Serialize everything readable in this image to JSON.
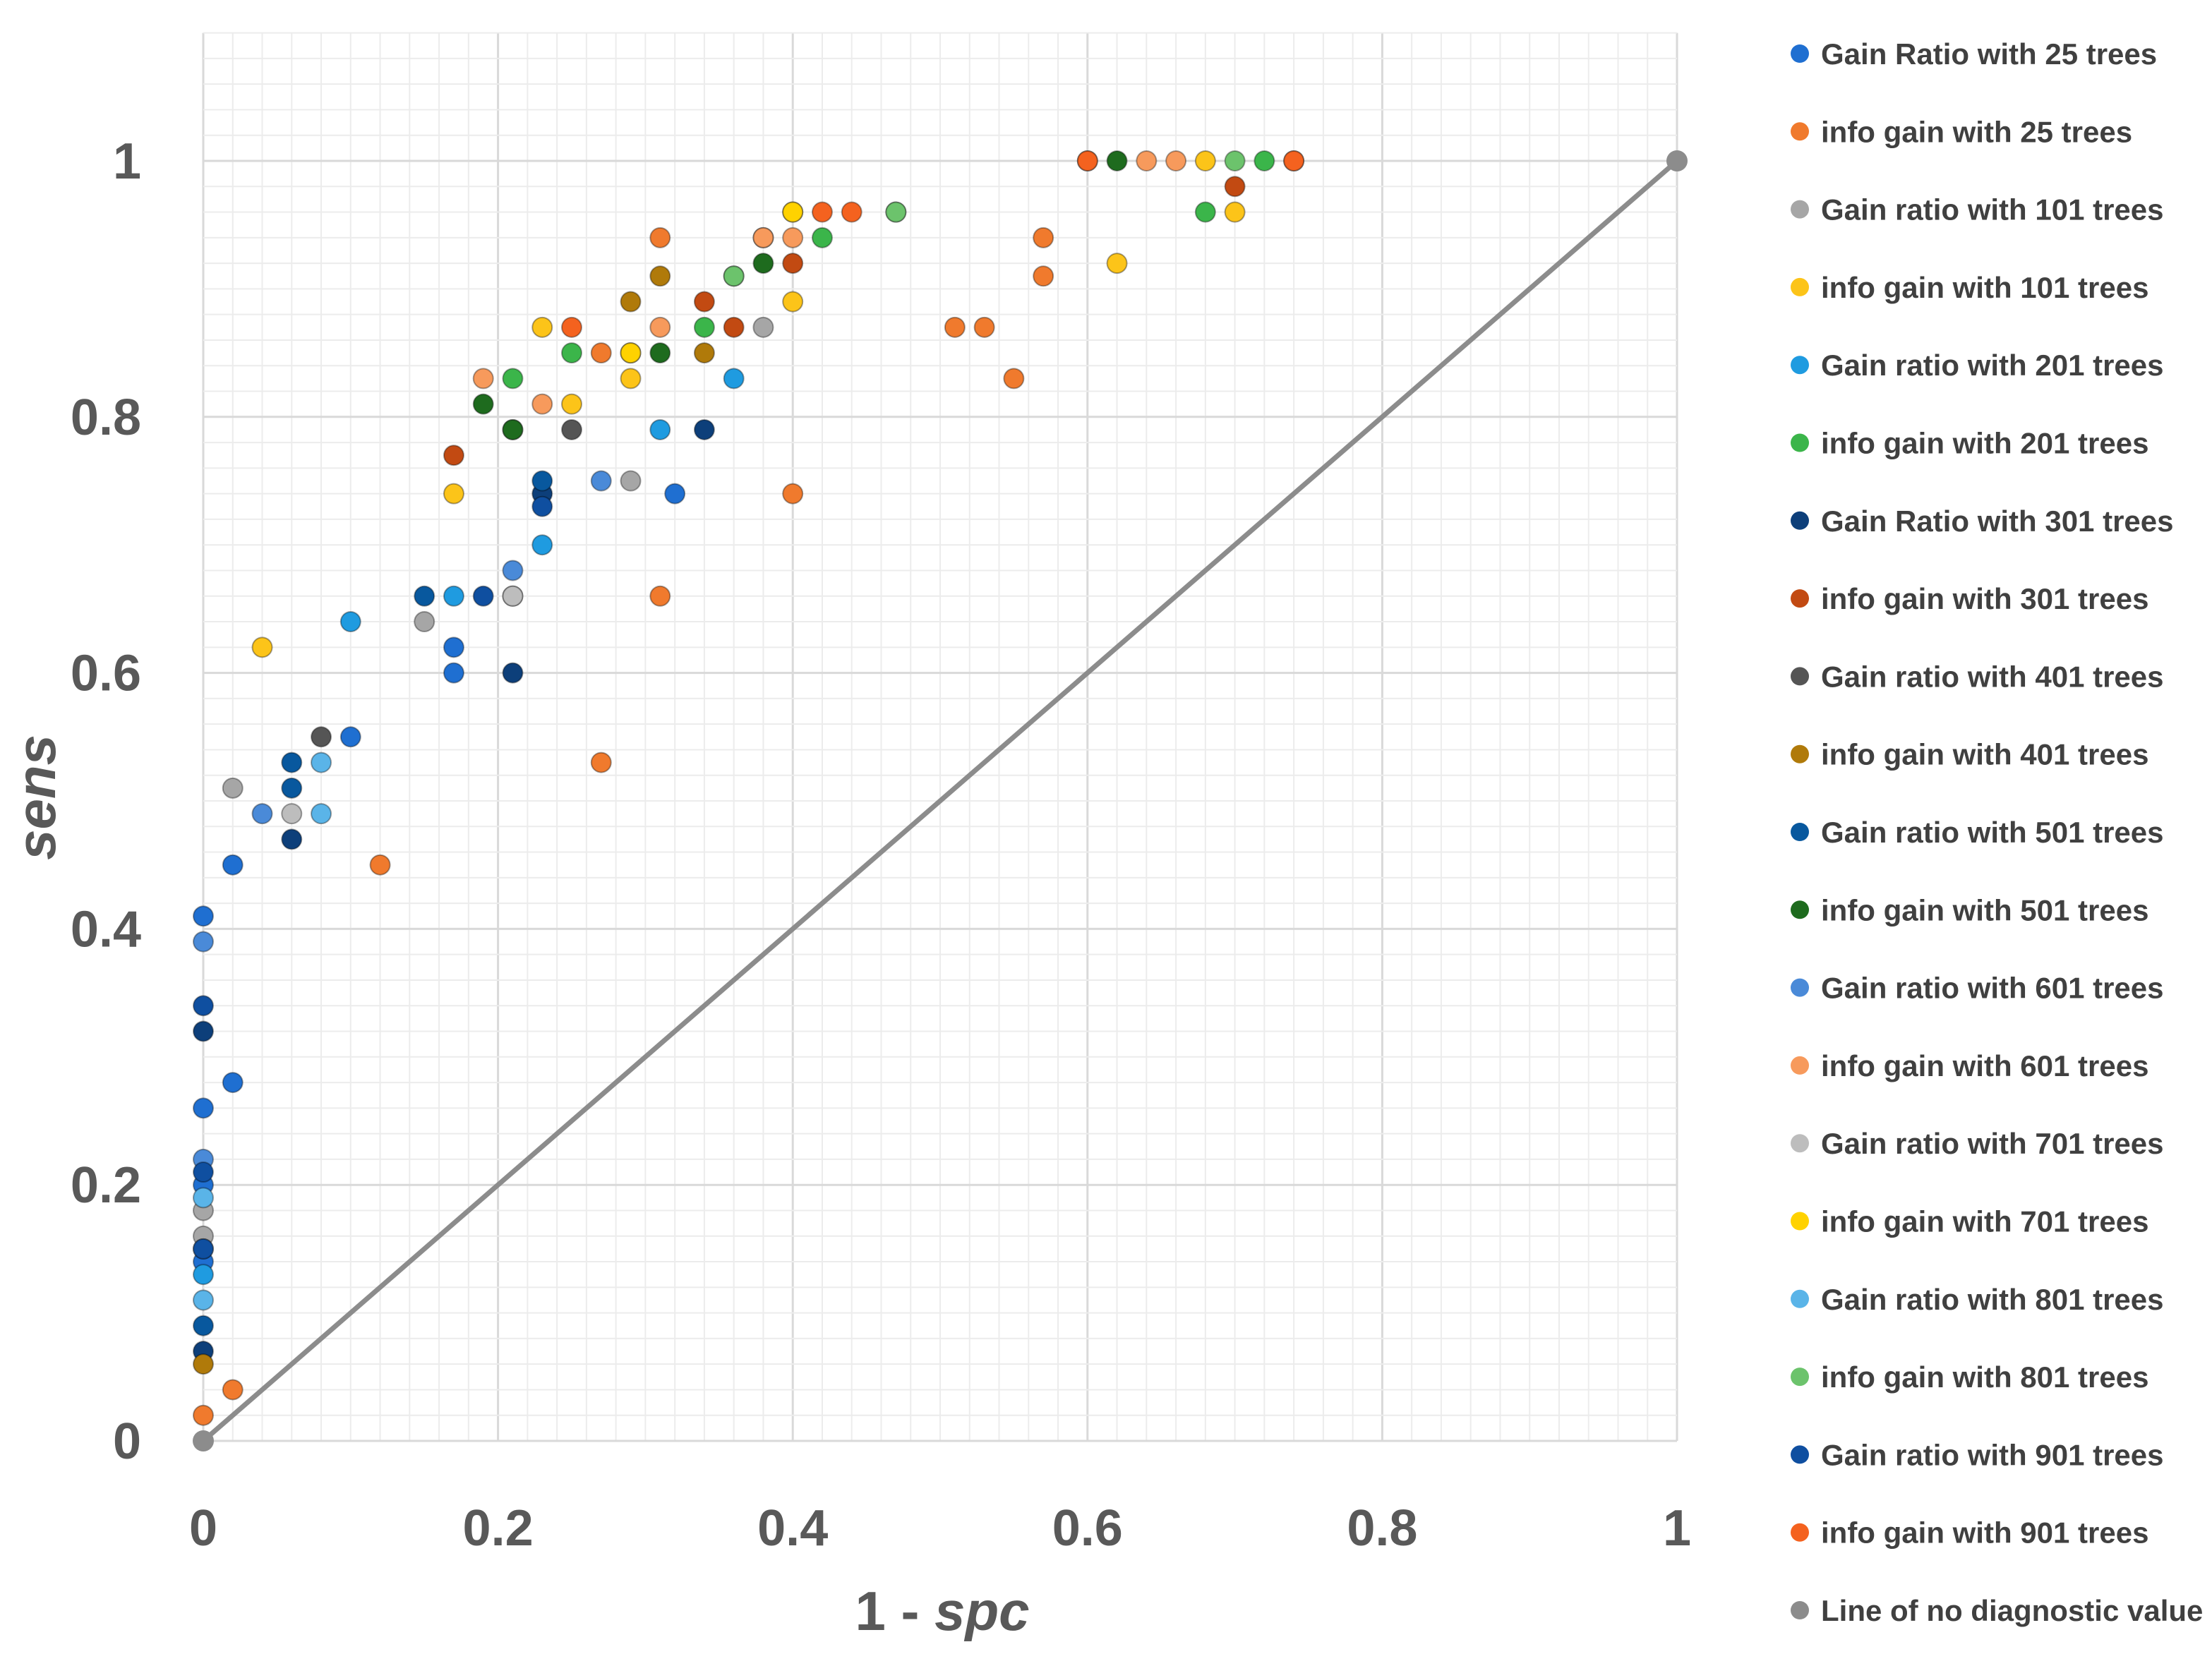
{
  "chart_data": {
    "type": "scatter",
    "title": "",
    "xlabel": "1 - spc",
    "xlabel_parts": [
      "1 - ",
      "spc"
    ],
    "ylabel": "sens",
    "xlim": [
      0,
      1
    ],
    "ylim": [
      0,
      1.1
    ],
    "xticks": [
      "0",
      "0.2",
      "0.4",
      "0.6",
      "0.8",
      "1"
    ],
    "xtick_values": [
      0,
      0.2,
      0.4,
      0.6,
      0.8,
      1
    ],
    "yticks": [
      "0",
      "0.2",
      "0.4",
      "0.6",
      "0.8",
      "1"
    ],
    "ytick_values": [
      0,
      0.2,
      0.4,
      0.6,
      0.8,
      1
    ],
    "grid": true,
    "legend_position": "right",
    "series": [
      {
        "name": "Gain Ratio with 25 trees",
        "color": "#1f6fd1",
        "points": [
          [
            0,
            0.41
          ],
          [
            0,
            0.26
          ],
          [
            0.02,
            0.45
          ],
          [
            0.17,
            0.62
          ],
          [
            0.17,
            0.6
          ],
          [
            0.32,
            0.74
          ],
          [
            0.1,
            0.55
          ],
          [
            0.02,
            0.28
          ],
          [
            0,
            0.2
          ],
          [
            0,
            0.14
          ]
        ]
      },
      {
        "name": "info gain with 25 trees",
        "color": "#f07a2d",
        "points": [
          [
            0,
            0.02
          ],
          [
            0.02,
            0.04
          ],
          [
            0.12,
            0.45
          ],
          [
            0.27,
            0.53
          ],
          [
            0.31,
            0.66
          ],
          [
            0.4,
            0.74
          ],
          [
            0.51,
            0.87
          ],
          [
            0.53,
            0.87
          ],
          [
            0.55,
            0.83
          ],
          [
            0.57,
            0.91
          ],
          [
            0.57,
            0.94
          ],
          [
            0.31,
            0.94
          ],
          [
            0.27,
            0.85
          ],
          [
            0.6,
            1
          ],
          [
            0.74,
            1
          ]
        ]
      },
      {
        "name": "Gain ratio with 101 trees",
        "color": "#a6a6a6",
        "points": [
          [
            0,
            0.16
          ],
          [
            0.02,
            0.51
          ],
          [
            0.15,
            0.64
          ],
          [
            0.21,
            0.66
          ],
          [
            0.38,
            0.87
          ],
          [
            0.29,
            0.75
          ],
          [
            0,
            0.18
          ]
        ]
      },
      {
        "name": "info gain with 101 trees",
        "color": "#fcc419",
        "points": [
          [
            0.04,
            0.62
          ],
          [
            0.17,
            0.74
          ],
          [
            0.23,
            0.87
          ],
          [
            0.25,
            0.81
          ],
          [
            0.29,
            0.83
          ],
          [
            0.29,
            0.85
          ],
          [
            0.4,
            0.89
          ],
          [
            0.4,
            0.96
          ],
          [
            0.62,
            0.92
          ],
          [
            0.68,
            1
          ],
          [
            0.7,
            0.96
          ]
        ]
      },
      {
        "name": "Gain ratio with 201 trees",
        "color": "#1f9be0",
        "points": [
          [
            0,
            0.13
          ],
          [
            0.1,
            0.64
          ],
          [
            0.17,
            0.66
          ],
          [
            0.31,
            0.79
          ],
          [
            0.36,
            0.83
          ],
          [
            0.23,
            0.7
          ]
        ]
      },
      {
        "name": "info gain with 201 trees",
        "color": "#3bb54a",
        "points": [
          [
            0.21,
            0.83
          ],
          [
            0.25,
            0.85
          ],
          [
            0.34,
            0.87
          ],
          [
            0.36,
            0.91
          ],
          [
            0.42,
            0.94
          ],
          [
            0.47,
            0.96
          ],
          [
            0.68,
            0.96
          ],
          [
            0.72,
            1
          ]
        ]
      },
      {
        "name": "Gain Ratio with 301 trees",
        "color": "#0d3f7a",
        "points": [
          [
            0,
            0.32
          ],
          [
            0.06,
            0.47
          ],
          [
            0.21,
            0.6
          ],
          [
            0.23,
            0.74
          ],
          [
            0.34,
            0.79
          ],
          [
            0,
            0.07
          ]
        ]
      },
      {
        "name": "info gain with 301 trees",
        "color": "#c24a12",
        "points": [
          [
            0.17,
            0.77
          ],
          [
            0.34,
            0.89
          ],
          [
            0.36,
            0.87
          ],
          [
            0.4,
            0.92
          ],
          [
            0.7,
            0.98
          ]
        ]
      },
      {
        "name": "Gain ratio with 401 trees",
        "color": "#555555",
        "points": [
          [
            0.08,
            0.55
          ],
          [
            0.25,
            0.79
          ],
          [
            0.38,
            0.94
          ],
          [
            0.21,
            0.79
          ]
        ]
      },
      {
        "name": "info gain with 401 trees",
        "color": "#b07a0a",
        "points": [
          [
            0,
            0.06
          ],
          [
            0.29,
            0.89
          ],
          [
            0.31,
            0.91
          ],
          [
            0.34,
            0.85
          ]
        ]
      },
      {
        "name": "Gain ratio with 501 trees",
        "color": "#08589e",
        "points": [
          [
            0,
            0.09
          ],
          [
            0.06,
            0.51
          ],
          [
            0.06,
            0.53
          ],
          [
            0.15,
            0.66
          ],
          [
            0.23,
            0.75
          ]
        ]
      },
      {
        "name": "info gain with 501 trees",
        "color": "#1e6b1e",
        "points": [
          [
            0.19,
            0.81
          ],
          [
            0.21,
            0.79
          ],
          [
            0.31,
            0.85
          ],
          [
            0.38,
            0.92
          ],
          [
            0.62,
            1
          ]
        ]
      },
      {
        "name": "Gain ratio with 601 trees",
        "color": "#4a8ad8",
        "points": [
          [
            0,
            0.39
          ],
          [
            0,
            0.22
          ],
          [
            0.04,
            0.49
          ],
          [
            0.21,
            0.68
          ],
          [
            0.27,
            0.75
          ]
        ]
      },
      {
        "name": "info gain with 601 trees",
        "color": "#f79a5c",
        "points": [
          [
            0.19,
            0.83
          ],
          [
            0.23,
            0.81
          ],
          [
            0.31,
            0.87
          ],
          [
            0.38,
            0.94
          ],
          [
            0.4,
            0.94
          ],
          [
            0.64,
            1
          ],
          [
            0.66,
            1
          ]
        ]
      },
      {
        "name": "Gain ratio with 701 trees",
        "color": "#bdbdbd",
        "points": [
          [
            0.06,
            0.49
          ],
          [
            0.21,
            0.66
          ],
          [
            0,
            0.15
          ]
        ]
      },
      {
        "name": "info gain with 701 trees",
        "color": "#ffd200",
        "points": [
          [
            0.29,
            0.85
          ],
          [
            0.4,
            0.96
          ]
        ]
      },
      {
        "name": "Gain ratio with 801 trees",
        "color": "#5ab4e8",
        "points": [
          [
            0,
            0.11
          ],
          [
            0.08,
            0.49
          ],
          [
            0.08,
            0.53
          ],
          [
            0,
            0.19
          ]
        ]
      },
      {
        "name": "info gain with 801 trees",
        "color": "#6cc36c",
        "points": [
          [
            0.36,
            0.91
          ],
          [
            0.47,
            0.96
          ],
          [
            0.7,
            1
          ]
        ]
      },
      {
        "name": "Gain ratio with 901 trees",
        "color": "#0f4fa0",
        "points": [
          [
            0,
            0.34
          ],
          [
            0.19,
            0.66
          ],
          [
            0.23,
            0.73
          ],
          [
            0,
            0.21
          ],
          [
            0,
            0.15
          ]
        ]
      },
      {
        "name": "info gain with 901 trees",
        "color": "#f4621f",
        "points": [
          [
            0.25,
            0.87
          ],
          [
            0.42,
            0.96
          ],
          [
            0.44,
            0.96
          ],
          [
            0.6,
            1
          ],
          [
            0.74,
            1
          ]
        ]
      }
    ],
    "reference_line": {
      "name": "Line of no diagnostic value",
      "color": "#8c8c8c",
      "points": [
        [
          0,
          0
        ],
        [
          1,
          1
        ]
      ]
    }
  }
}
